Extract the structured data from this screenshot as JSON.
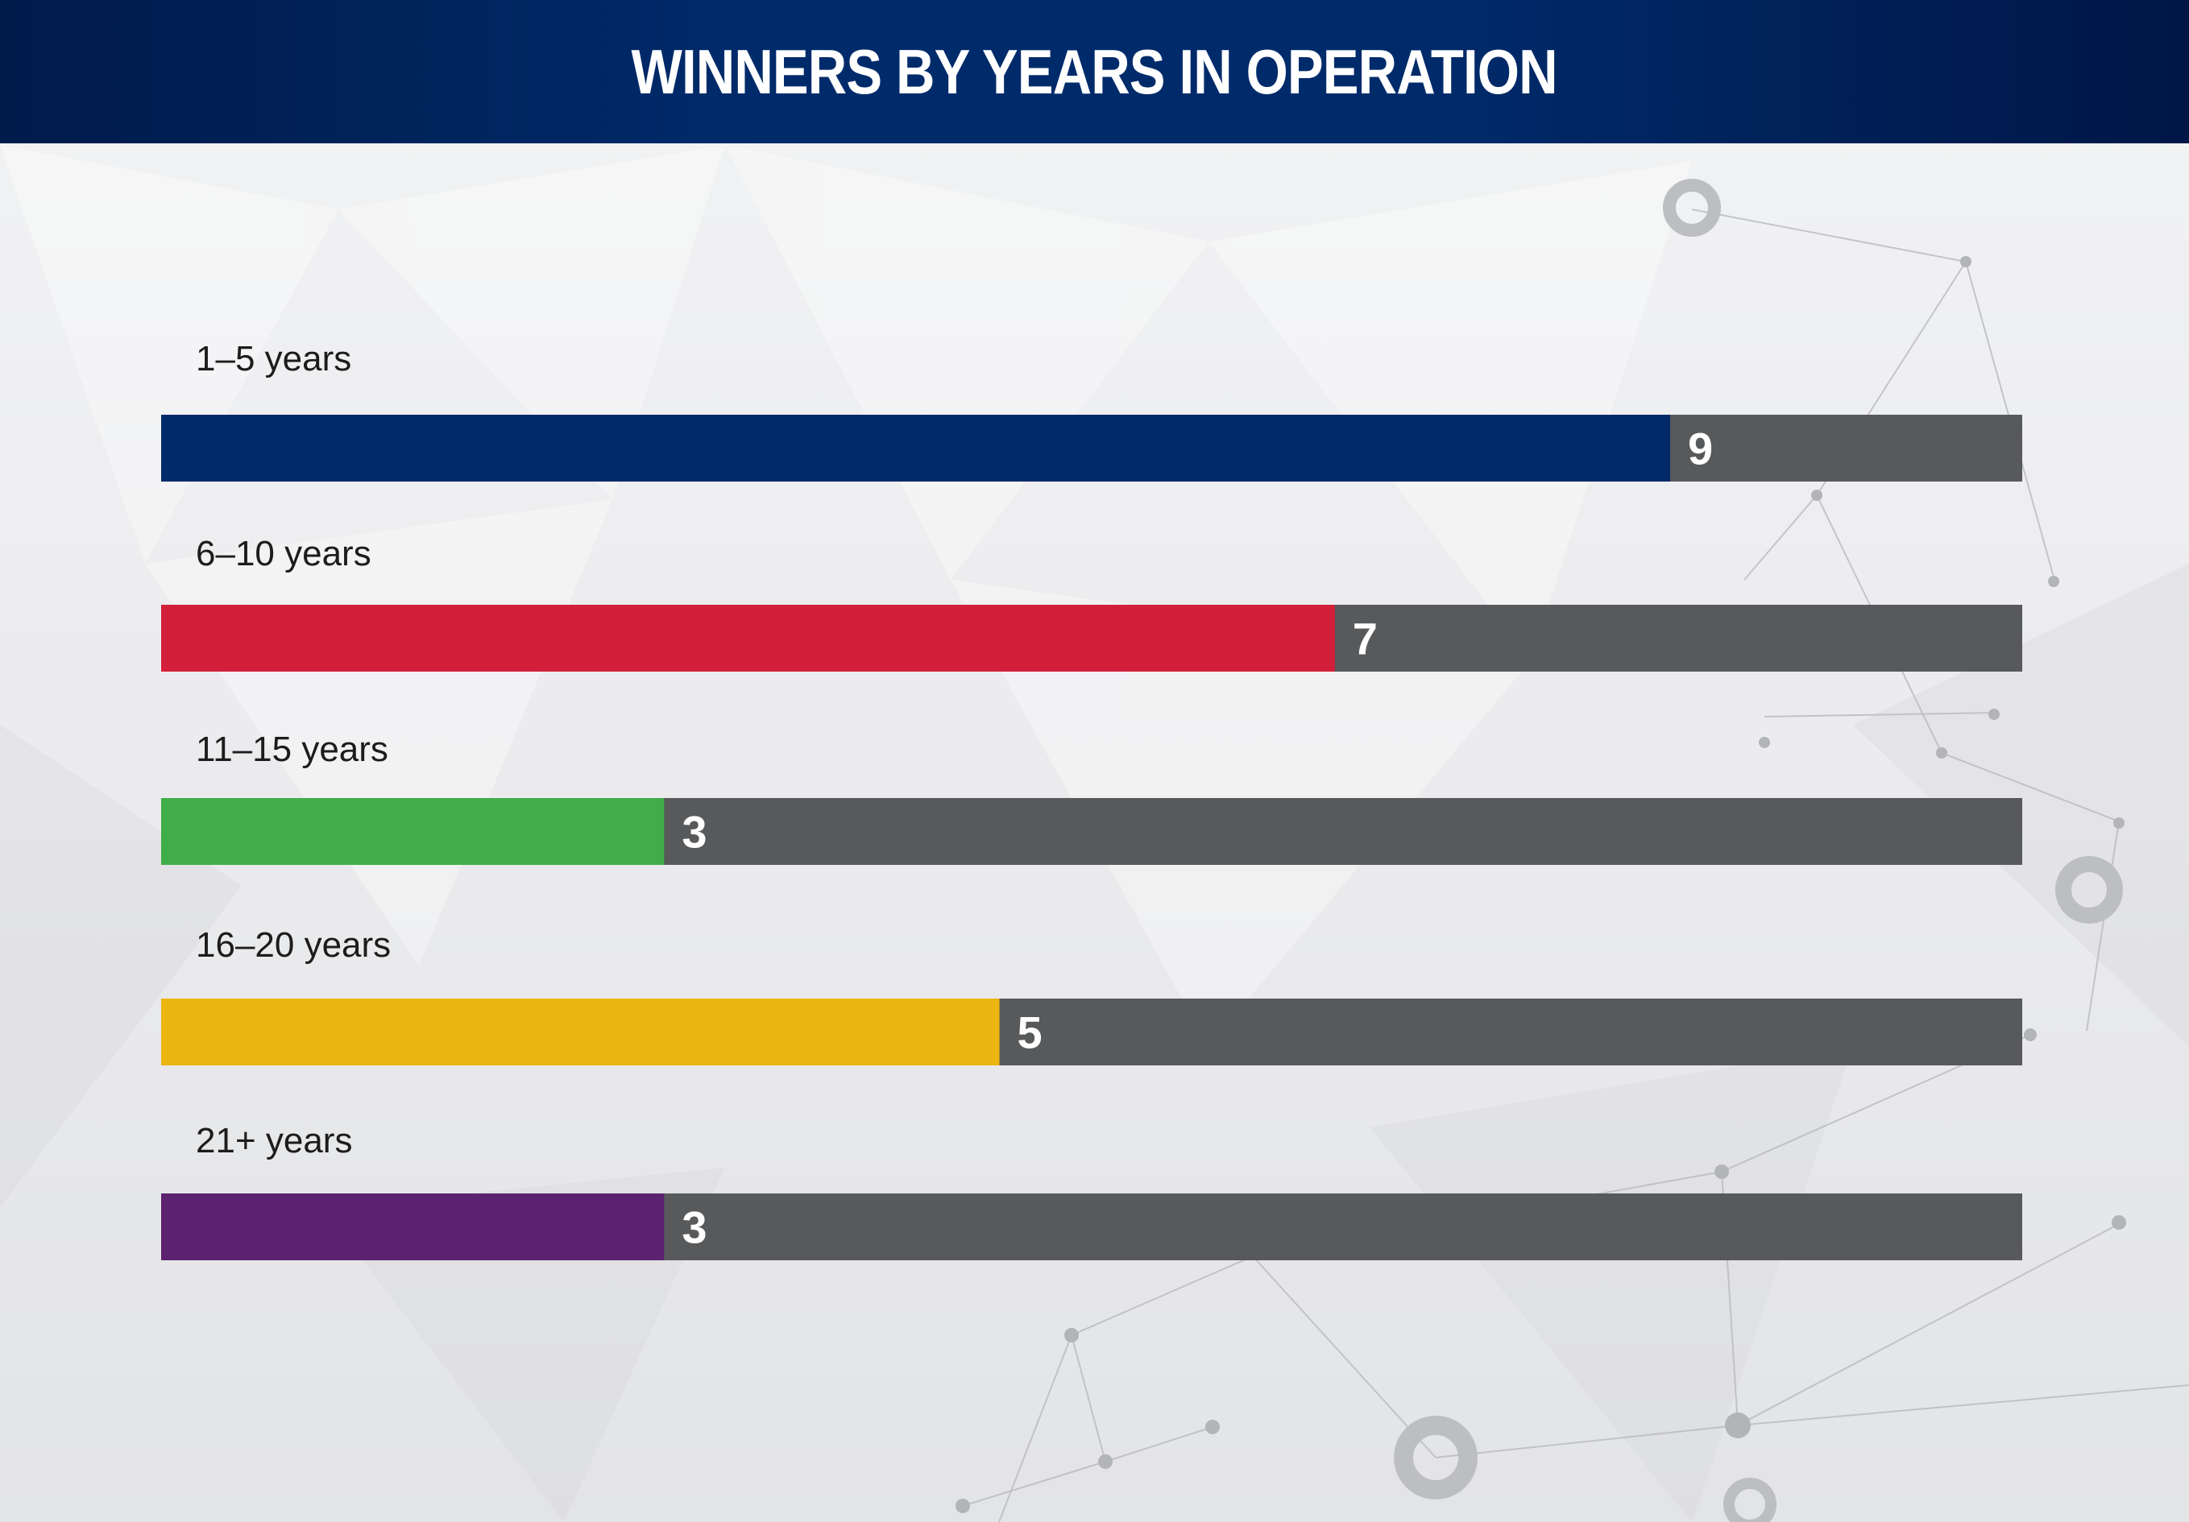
{
  "header": {
    "title": "WINNERS BY YEARS IN OPERATION"
  },
  "colors": {
    "header_bg": "#002b6b",
    "track": "#58595b",
    "bars": [
      "#002a68",
      "#d41f3a",
      "#41ad49",
      "#edb512",
      "#5b2270"
    ]
  },
  "chart_data": {
    "type": "bar",
    "orientation": "horizontal",
    "title": "WINNERS BY YEARS IN OPERATION",
    "categories": [
      "1–5 years",
      "6–10 years",
      "11–15 years",
      "16–20 years",
      "21+ years"
    ],
    "values": [
      9,
      7,
      3,
      5,
      3
    ],
    "xlim": [
      0,
      11.1
    ],
    "grid": false,
    "legend": "none"
  }
}
